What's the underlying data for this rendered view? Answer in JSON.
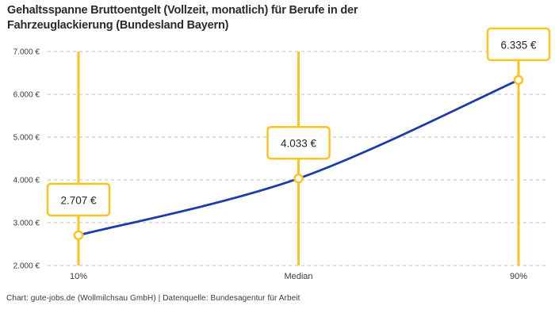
{
  "title": {
    "line1": "Gehaltsspanne Bruttoentgelt (Vollzeit, monatlich) für Berufe in der",
    "line2": "Fahrzeuglackierung (Bundesland Bayern)"
  },
  "footer": {
    "attribution": "Chart: gute-jobs.de (Wollmilchsau GmbH) | Datenquelle: Bundesagentur für Arbeit"
  },
  "colors": {
    "accent_yellow": "#FEC31E",
    "series_blue": "#1E3AAB",
    "grid_gray": "#CBCBCB",
    "title_text": "#2B2B2B",
    "tick_text": "#3A3A3A",
    "value_text": "#262626",
    "background": "#FFFFFF"
  },
  "chart_data": {
    "type": "line",
    "title": "Gehaltsspanne Bruttoentgelt (Vollzeit, monatlich) für Berufe in der Fahrzeuglackierung (Bundesland Bayern)",
    "categories": [
      "10%",
      "Median",
      "90%"
    ],
    "values": [
      2707,
      4033,
      6335
    ],
    "value_labels": [
      "2.707 €",
      "4.033 €",
      "6.335 €"
    ],
    "series_name": "Bruttoentgelt",
    "ylim": [
      2000,
      7000
    ],
    "y_ticks": [
      2000,
      3000,
      4000,
      5000,
      6000,
      7000
    ],
    "y_tick_labels": [
      "2.000 €",
      "3.000 €",
      "4.000 €",
      "5.000 €",
      "6.000 €",
      "7.000 €"
    ],
    "xlabel": "",
    "ylabel": "",
    "grid": "horizontal-dashed",
    "legend": "none",
    "marker": "open-circle",
    "annotations": "value label in yellow-bordered white box above each point; vertical yellow guide line at each category"
  }
}
